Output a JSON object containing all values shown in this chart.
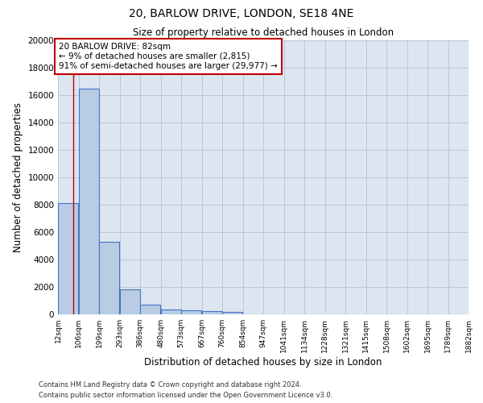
{
  "title_line1": "20, BARLOW DRIVE, LONDON, SE18 4NE",
  "title_line2": "Size of property relative to detached houses in London",
  "xlabel": "Distribution of detached houses by size in London",
  "ylabel": "Number of detached properties",
  "annotation_title": "20 BARLOW DRIVE: 82sqm",
  "annotation_line2": "← 9% of detached houses are smaller (2,815)",
  "annotation_line3": "91% of semi-detached houses are larger (29,977) →",
  "property_size_sqm": 82,
  "bin_edges": [
    12,
    106,
    199,
    293,
    386,
    480,
    573,
    667,
    760,
    854,
    947,
    1041,
    1134,
    1228,
    1321,
    1415,
    1508,
    1602,
    1695,
    1789,
    1882
  ],
  "bin_heights": [
    8100,
    16500,
    5300,
    1850,
    700,
    380,
    300,
    220,
    200,
    0,
    0,
    0,
    0,
    0,
    0,
    0,
    0,
    0,
    0,
    0
  ],
  "bar_facecolor": "#b8cce4",
  "bar_edgecolor": "#4472c4",
  "bar_linewidth": 0.8,
  "vline_color": "#c00000",
  "vline_x": 82,
  "annotation_box_edgecolor": "#c00000",
  "annotation_box_facecolor": "#ffffff",
  "background_color": "#ffffff",
  "axes_facecolor": "#dce6f1",
  "grid_color": "#b0b8cc",
  "ylim": [
    0,
    20000
  ],
  "yticks": [
    0,
    2000,
    4000,
    6000,
    8000,
    10000,
    12000,
    14000,
    16000,
    18000,
    20000
  ],
  "tick_labels": [
    "12sqm",
    "106sqm",
    "199sqm",
    "293sqm",
    "386sqm",
    "480sqm",
    "573sqm",
    "667sqm",
    "760sqm",
    "854sqm",
    "947sqm",
    "1041sqm",
    "1134sqm",
    "1228sqm",
    "1321sqm",
    "1415sqm",
    "1508sqm",
    "1602sqm",
    "1695sqm",
    "1789sqm",
    "1882sqm"
  ],
  "footnote_line1": "Contains HM Land Registry data © Crown copyright and database right 2024.",
  "footnote_line2": "Contains public sector information licensed under the Open Government Licence v3.0."
}
